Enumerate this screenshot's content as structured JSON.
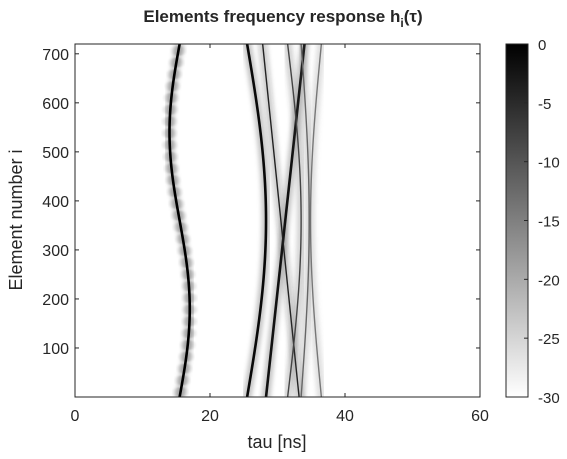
{
  "chart_data": {
    "type": "heatmap",
    "title_main": "Elements frequency response h",
    "title_sub": "i",
    "title_arg": "(τ)",
    "xlabel": "tau [ns]",
    "ylabel": "Element number i",
    "xlim": [
      0,
      60
    ],
    "ylim": [
      0,
      720
    ],
    "xticks": [
      0,
      20,
      40,
      60
    ],
    "yticks": [
      100,
      200,
      300,
      400,
      500,
      600,
      700
    ],
    "colorbar": {
      "range": [
        -30,
        0
      ],
      "ticks": [
        0,
        -5,
        -10,
        -15,
        -20,
        -25,
        -30
      ],
      "colormap": "gray",
      "low_color": "#ffffff",
      "high_color": "#000000"
    },
    "traces": [
      {
        "kind": "sine",
        "center": 15.5,
        "amp": 1.5,
        "half_period": 360,
        "db": 0
      },
      {
        "kind": "sine",
        "center": 25.5,
        "amp": 2.8,
        "half_period": 720,
        "db": -1
      },
      {
        "kind": "line",
        "tau_start": 28.3,
        "tau_end": 34.0,
        "db": -2
      },
      {
        "kind": "line",
        "tau_start": 33.2,
        "tau_end": 27.8,
        "db": -4
      },
      {
        "kind": "sine",
        "center": 31.5,
        "amp": 2.0,
        "half_period": 720,
        "db": -8
      },
      {
        "kind": "sine",
        "center": 36.5,
        "amp": -1.6,
        "half_period": 720,
        "db": -14
      },
      {
        "kind": "sine",
        "center": 33.5,
        "amp": 1.2,
        "half_period": 720,
        "db": -12
      }
    ]
  }
}
